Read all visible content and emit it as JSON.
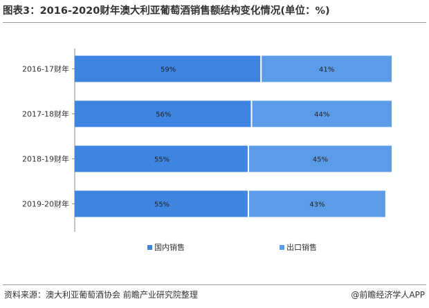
{
  "title": "图表3：2016-2020财年澳大利亚葡萄酒销售额结构变化情况(单位：%)",
  "footer": {
    "source": "资料来源：澳大利亚葡萄酒协会 前瞻产业研究院整理",
    "brand": "@前瞻经济学人APP"
  },
  "colors": {
    "domestic": "#3d85e0",
    "export": "#5b9be8",
    "bar_label": "#222222",
    "axis": "#333333"
  },
  "chart_data": {
    "type": "bar",
    "orientation": "horizontal",
    "stacked": true,
    "title": "图表3：2016-2020财年澳大利亚葡萄酒销售额结构变化情况(单位：%)",
    "xlabel": "",
    "ylabel": "",
    "xlim": [
      0,
      100
    ],
    "grid": false,
    "legend_position": "bottom",
    "categories": [
      "2016-17财年",
      "2017-18财年",
      "2018-19财年",
      "2019-20财年"
    ],
    "series": [
      {
        "name": "国内销售",
        "values": [
          59,
          56,
          55,
          55
        ],
        "labels": [
          "59%",
          "56%",
          "55%",
          "55%"
        ]
      },
      {
        "name": "出口销售",
        "values": [
          41,
          44,
          45,
          43
        ],
        "labels": [
          "41%",
          "44%",
          "45%",
          "43%"
        ]
      }
    ]
  }
}
